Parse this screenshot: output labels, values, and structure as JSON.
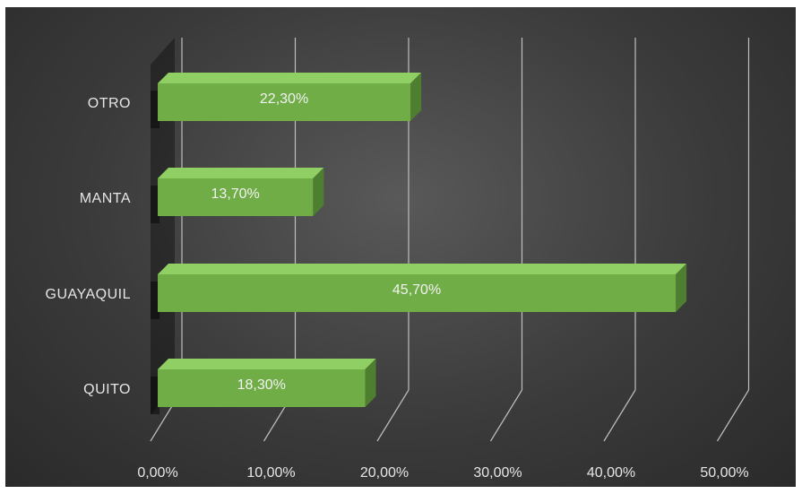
{
  "chart_data": {
    "type": "bar",
    "orientation": "horizontal",
    "style": "3d-clustered-bar",
    "categories": [
      "QUITO",
      "GUAYAQUIL",
      "MANTA",
      "OTRO"
    ],
    "values": [
      18.3,
      45.7,
      13.7,
      22.3
    ],
    "data_labels": [
      "18,30%",
      "45,70%",
      "13,70%",
      "22,30%"
    ],
    "x_ticks": [
      "0,00%",
      "10,00%",
      "20,00%",
      "30,00%",
      "40,00%",
      "50,00%"
    ],
    "xlim": [
      0,
      50
    ],
    "title": "",
    "xlabel": "",
    "ylabel": "",
    "grid": true,
    "legend": "none",
    "colors": {
      "bar_front": "#70ad47",
      "bar_top": "#8fcf63",
      "bar_side": "#4e7f30",
      "gridline": "#bfbfbf",
      "background": "#3f3f3f"
    }
  }
}
